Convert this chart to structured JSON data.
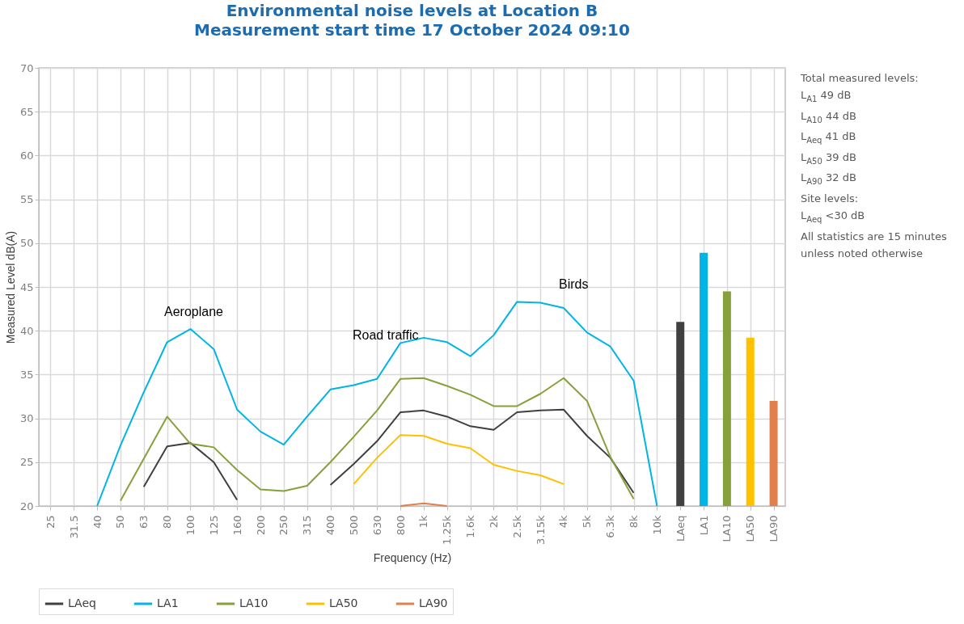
{
  "chart_data": {
    "type": "line",
    "title": "Environmental noise levels at Location B",
    "subtitle": "Measurement start time 17 October 2024 09:10",
    "xlabel": "Frequency (Hz)",
    "ylabel": "Measured Level dB(A)",
    "categories": [
      "25",
      "31.5",
      "40",
      "50",
      "63",
      "80",
      "100",
      "125",
      "160",
      "200",
      "250",
      "315",
      "400",
      "500",
      "630",
      "800",
      "1k",
      "1.25k",
      "1.6k",
      "2k",
      "2.5k",
      "3.15k",
      "4k",
      "5k",
      "6.3k",
      "8k",
      "10k",
      "LAeq",
      "LA1",
      "LA10",
      "LA50",
      "LA90"
    ],
    "series": [
      {
        "name": "LAeq",
        "color": "#404040",
        "values": [
          null,
          null,
          null,
          null,
          22.2,
          26.8,
          27.2,
          25.0,
          20.7,
          null,
          null,
          null,
          22.4,
          24.8,
          27.4,
          30.7,
          30.9,
          30.2,
          29.1,
          28.7,
          30.7,
          30.9,
          31.0,
          28.0,
          25.5,
          21.5,
          null,
          null,
          null,
          null,
          null,
          null
        ]
      },
      {
        "name": "LA1",
        "color": "#00b4e6",
        "values": [
          null,
          null,
          20.0,
          26.9,
          33.0,
          38.7,
          40.2,
          37.9,
          31.0,
          28.5,
          27.0,
          30.2,
          33.3,
          33.8,
          34.5,
          38.6,
          39.2,
          38.7,
          37.1,
          39.5,
          43.3,
          43.2,
          42.6,
          39.8,
          38.2,
          34.3,
          20.0,
          null,
          null,
          null,
          null,
          null
        ]
      },
      {
        "name": "LA10",
        "color": "#86a03c",
        "values": [
          null,
          null,
          null,
          20.6,
          25.4,
          30.2,
          27.1,
          26.7,
          24.1,
          21.9,
          21.7,
          22.3,
          25.0,
          27.9,
          30.9,
          34.5,
          34.6,
          33.7,
          32.7,
          31.4,
          31.4,
          32.8,
          34.6,
          32.0,
          25.6,
          20.8,
          null,
          null,
          null,
          null,
          null,
          null
        ]
      },
      {
        "name": "LA50",
        "color": "#ffc000",
        "values": [
          null,
          null,
          null,
          null,
          null,
          null,
          null,
          null,
          null,
          null,
          null,
          null,
          null,
          22.5,
          25.5,
          28.1,
          28.0,
          27.1,
          26.6,
          24.7,
          24.0,
          23.5,
          22.5,
          null,
          null,
          null,
          null,
          null,
          null,
          null,
          null,
          null
        ]
      },
      {
        "name": "LA90",
        "color": "#e0804d",
        "values": [
          null,
          null,
          null,
          null,
          null,
          null,
          null,
          null,
          null,
          null,
          null,
          null,
          null,
          null,
          null,
          20.0,
          20.3,
          20.0,
          null,
          null,
          null,
          null,
          null,
          null,
          null,
          null,
          null,
          null,
          null,
          null,
          null,
          null
        ]
      },
      {
        "type": "bar",
        "colors": [
          null,
          null,
          null,
          null,
          null,
          null,
          null,
          null,
          null,
          null,
          null,
          null,
          null,
          null,
          null,
          null,
          null,
          null,
          null,
          null,
          null,
          null,
          null,
          null,
          null,
          null,
          null,
          "#404040",
          "#00b4e6",
          "#86a03c",
          "#ffc000",
          "#e0804d"
        ],
        "values": [
          null,
          null,
          null,
          null,
          null,
          null,
          null,
          null,
          null,
          null,
          null,
          null,
          null,
          null,
          null,
          null,
          null,
          null,
          null,
          null,
          null,
          null,
          null,
          null,
          null,
          null,
          null,
          41.0,
          48.9,
          44.5,
          39.2,
          32.0
        ]
      }
    ],
    "ylim": [
      20,
      70
    ],
    "yticks": [
      20,
      25,
      30,
      35,
      40,
      45,
      50,
      55,
      60,
      65,
      70
    ],
    "grid": true,
    "legend": "bottom",
    "annotations": [
      "Aeroplane",
      "Road traffic",
      "Birds",
      "Total measured levels:",
      "L$_{A1}$ 49 dB",
      "L$_{A10}$ 44 dB",
      "L$_{Aeq}$ 41 dB",
      "L$_{A50}$ 39 dB",
      "L$_{A90}$ 32 dB",
      "Site levels:",
      "L$_{Aeq}$ <30 dB",
      "All statistics are 15 minutes unless noted otherwise"
    ]
  }
}
